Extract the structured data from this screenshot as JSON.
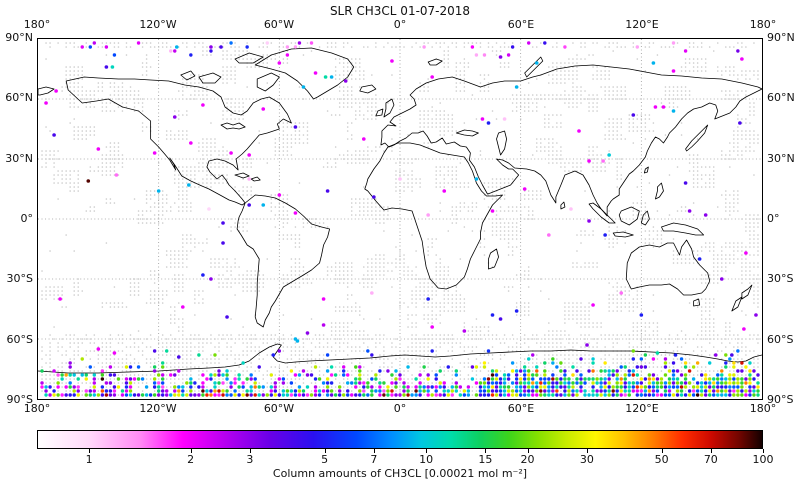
{
  "title": "SLR CH3CL 01-07-2018",
  "axes": {
    "lon_tick_labels": [
      "180°",
      "120°W",
      "60°W",
      "0°",
      "60°E",
      "120°E",
      "180°"
    ],
    "lat_tick_labels": [
      "90°N",
      "60°N",
      "30°N",
      "0°",
      "30°S",
      "60°S",
      "90°S"
    ]
  },
  "colorbar": {
    "label": "Column amounts of CH3CL [0.00021 mol m⁻²]",
    "tick_values": [
      1,
      2,
      3,
      5,
      7,
      10,
      15,
      20,
      30,
      50,
      70,
      100
    ]
  },
  "colors": {
    "coastline": "#000000",
    "grid": "#999999",
    "stipple": "#c9c9c9",
    "frame": "#000000",
    "background": "#ffffff"
  },
  "colormap": {
    "scale": "log",
    "vmin": 0.7,
    "vmax": 100,
    "stops": [
      [
        0.0,
        "#ffffff"
      ],
      [
        0.07,
        "#ffd9fa"
      ],
      [
        0.14,
        "#ff8cf5"
      ],
      [
        0.2,
        "#ff00ff"
      ],
      [
        0.26,
        "#b400f0"
      ],
      [
        0.32,
        "#6a00e8"
      ],
      [
        0.38,
        "#2b10f0"
      ],
      [
        0.44,
        "#0048ff"
      ],
      [
        0.49,
        "#0090ff"
      ],
      [
        0.53,
        "#00c8e0"
      ],
      [
        0.57,
        "#00dcaa"
      ],
      [
        0.61,
        "#0ed060"
      ],
      [
        0.65,
        "#3cd41c"
      ],
      [
        0.69,
        "#85e000"
      ],
      [
        0.73,
        "#c8ec00"
      ],
      [
        0.77,
        "#fff600"
      ],
      [
        0.81,
        "#ffc000"
      ],
      [
        0.85,
        "#ff7d00"
      ],
      [
        0.89,
        "#ff2d00"
      ],
      [
        0.93,
        "#cc0900"
      ],
      [
        0.97,
        "#6e0500"
      ],
      [
        1.0,
        "#140000"
      ]
    ]
  },
  "chart_data": {
    "type": "scatter",
    "projection": "equirectangular",
    "lon_range": [
      -180,
      180
    ],
    "lat_range": [
      -90,
      90
    ],
    "title": "SLR CH3CL 01-07-2018",
    "colorbar_label": "Column amounts of CH3CL [0.00021 mol m⁻²]",
    "value_scale": "log",
    "vmin": 0.7,
    "vmax": 100,
    "colorbar_ticks": [
      1,
      2,
      3,
      5,
      7,
      10,
      15,
      20,
      30,
      50,
      70,
      100
    ],
    "grid_step_deg": 2,
    "points_lon_lat_value": [
      [
        -111,
        86,
        9
      ],
      [
        -94,
        86,
        3
      ],
      [
        -89,
        86,
        4
      ],
      [
        -146,
        76,
        4
      ],
      [
        -143,
        76,
        11
      ],
      [
        -60,
        78,
        2
      ],
      [
        -42,
        73,
        2
      ],
      [
        -37,
        71,
        12
      ],
      [
        -34,
        71,
        9
      ],
      [
        -27,
        69,
        3
      ],
      [
        -48,
        66,
        9
      ],
      [
        -4,
        79,
        2
      ],
      [
        50,
        81,
        3
      ],
      [
        68,
        78,
        9
      ],
      [
        126,
        78,
        9
      ],
      [
        136,
        74,
        2
      ],
      [
        16,
        71,
        2
      ],
      [
        58,
        66,
        9
      ],
      [
        170,
        80,
        2
      ],
      [
        -171,
        64,
        2
      ],
      [
        -176,
        58,
        2
      ],
      [
        -112,
        51,
        3
      ],
      [
        -98,
        57,
        2
      ],
      [
        -68,
        55,
        2
      ],
      [
        -104,
        38,
        2
      ],
      [
        -150,
        35,
        2
      ],
      [
        -172,
        42,
        4
      ],
      [
        -84,
        33,
        2
      ],
      [
        -75,
        32,
        2
      ],
      [
        -141,
        22,
        1.5
      ],
      [
        -122,
        33,
        2
      ],
      [
        -155,
        19,
        90
      ],
      [
        -105,
        17,
        9
      ],
      [
        -95,
        5,
        1
      ],
      [
        -75,
        20,
        1.2
      ],
      [
        -60,
        12,
        2
      ],
      [
        -52,
        3,
        2
      ],
      [
        -68,
        7,
        9
      ],
      [
        -75,
        7,
        4
      ],
      [
        -36,
        14,
        4
      ],
      [
        -52,
        46,
        4
      ],
      [
        -88,
        -2,
        4
      ],
      [
        -88,
        -12,
        4
      ],
      [
        -98,
        -28,
        5
      ],
      [
        -94,
        -30,
        3
      ],
      [
        -108,
        -44,
        2
      ],
      [
        -86,
        -49,
        4
      ],
      [
        -38,
        -40,
        2
      ],
      [
        -14,
        -37,
        1.2
      ],
      [
        -38,
        -53,
        2.5
      ],
      [
        -52,
        -60,
        9
      ],
      [
        -18,
        40,
        2
      ],
      [
        41,
        50,
        2
      ],
      [
        44,
        48,
        5
      ],
      [
        52,
        50,
        1.1
      ],
      [
        38,
        20,
        9
      ],
      [
        22,
        14,
        2
      ],
      [
        -13,
        11,
        4
      ],
      [
        0,
        20,
        1.1
      ],
      [
        62,
        15,
        2
      ],
      [
        46,
        4,
        2
      ],
      [
        14,
        2,
        1.3
      ],
      [
        89,
        44,
        2
      ],
      [
        104,
        32,
        10
      ],
      [
        94,
        29,
        2
      ],
      [
        101,
        29,
        1.5
      ],
      [
        142,
        18,
        4
      ],
      [
        144,
        4,
        3
      ],
      [
        152,
        2,
        3
      ],
      [
        94,
        -1,
        3
      ],
      [
        102,
        -8,
        5
      ],
      [
        85,
        5,
        1.1
      ],
      [
        149,
        -20,
        5
      ],
      [
        160,
        -30,
        3
      ],
      [
        110,
        -37,
        1.5
      ],
      [
        14,
        -40,
        5
      ],
      [
        96,
        -43,
        2
      ],
      [
        46,
        -48,
        5
      ],
      [
        50,
        -50,
        4
      ],
      [
        58,
        -46,
        5
      ],
      [
        120,
        -48,
        5
      ],
      [
        16,
        -54,
        2
      ],
      [
        177,
        -48,
        3
      ],
      [
        127,
        56,
        2
      ],
      [
        131,
        56,
        2
      ],
      [
        136,
        54,
        9
      ],
      [
        116,
        52,
        4
      ],
      [
        169,
        48,
        4
      ],
      [
        -150,
        -65,
        2
      ],
      [
        -142,
        -67,
        2
      ],
      [
        -110,
        -69,
        4
      ],
      [
        -46,
        -57,
        3
      ],
      [
        -51,
        -61,
        9
      ],
      [
        -63,
        -68,
        5
      ],
      [
        32,
        -56,
        2.5
      ],
      [
        93,
        -63,
        3
      ],
      [
        128,
        -67,
        12
      ],
      [
        137,
        -68,
        5
      ],
      [
        157,
        -68,
        3
      ],
      [
        165,
        -68,
        4
      ],
      [
        172,
        -17,
        2
      ],
      [
        -169,
        -40,
        2
      ],
      [
        -120,
        14,
        9
      ],
      [
        171,
        -55,
        2
      ],
      [
        74,
        -8,
        1.5
      ]
    ],
    "antarctic_band": {
      "lat_rows": [
        -66,
        -68,
        -70,
        -72,
        -74,
        -76,
        -78,
        -80,
        -82,
        -84,
        -86,
        -88
      ],
      "row_density": [
        0.03,
        0.04,
        0.05,
        0.09,
        0.13,
        0.2,
        0.3,
        0.42,
        0.5,
        0.55,
        0.6,
        0.92
      ],
      "east_boost_lon": [
        40,
        180
      ],
      "east_boost_factor": 1.8,
      "max_density": 0.92,
      "value_log10_range": [
        0.2,
        1.5
      ],
      "east_value_log10_range": [
        0.5,
        1.55
      ],
      "high_value_chance": 0.06,
      "high_value_log10_range": [
        1.6,
        2.0
      ]
    },
    "arctic_band": {
      "lat_rows": [
        82,
        84,
        86,
        88
      ],
      "density": 0.035,
      "value_log10_range": [
        0.0,
        0.9
      ]
    },
    "background_stipple": {
      "seed": 7,
      "clusters": 260,
      "cluster_w_cells": [
        2,
        7
      ],
      "cluster_h_cells": [
        2,
        6
      ],
      "fill_prob": 0.85,
      "subantarctic_lat_rows": [
        -58,
        -64
      ],
      "subantarctic_prob": 0.5,
      "antarctic_interior_lat_rows": [
        -66,
        -88
      ],
      "antarctic_interior_prob": 0.5,
      "arctic_lat_rows": [
        86,
        88
      ],
      "arctic_prob": 0.5,
      "random_single_prob": 0.015
    }
  }
}
